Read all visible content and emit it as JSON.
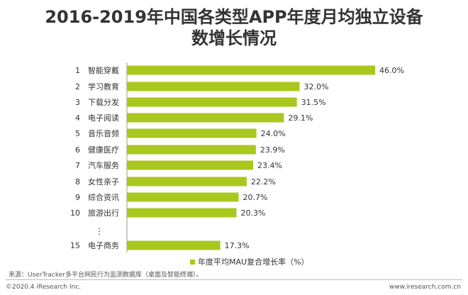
{
  "title_line1": "2016-2019年中国各类型APP年度月均独立设备",
  "title_line2": "数增长情况",
  "chart_data": {
    "type": "bar",
    "orientation": "horizontal",
    "ranks": [
      "1",
      "2",
      "3",
      "4",
      "5",
      "6",
      "7",
      "8",
      "9",
      "10",
      "⋮",
      "15"
    ],
    "categories": [
      "智能穿戴",
      "学习教育",
      "下载分发",
      "电子阅读",
      "音乐音频",
      "健康医疗",
      "汽车服务",
      "女性亲子",
      "综合资讯",
      "旅游出行",
      "",
      "电子商务"
    ],
    "values": [
      46.0,
      32.0,
      31.5,
      29.1,
      24.0,
      23.9,
      23.4,
      22.2,
      20.7,
      20.3,
      null,
      17.3
    ],
    "value_labels": [
      "46.0%",
      "32.0%",
      "31.5%",
      "29.1%",
      "24.0%",
      "23.9%",
      "23.4%",
      "22.2%",
      "20.7%",
      "20.3%",
      "",
      "17.3%"
    ],
    "series": [
      {
        "name": "年度平均MAU复合增长率（%）"
      }
    ],
    "xlim": [
      0,
      46.0
    ],
    "grid": false,
    "legend_position": "bottom",
    "bar_color": "#a8c81e"
  },
  "footer": {
    "source": "来源：UserTracker多平台网民行为监测数据库（桌面及智能终端）。",
    "copyright": "©2020.4 iResearch Inc.",
    "website": "www.iresearch.com.cn"
  }
}
